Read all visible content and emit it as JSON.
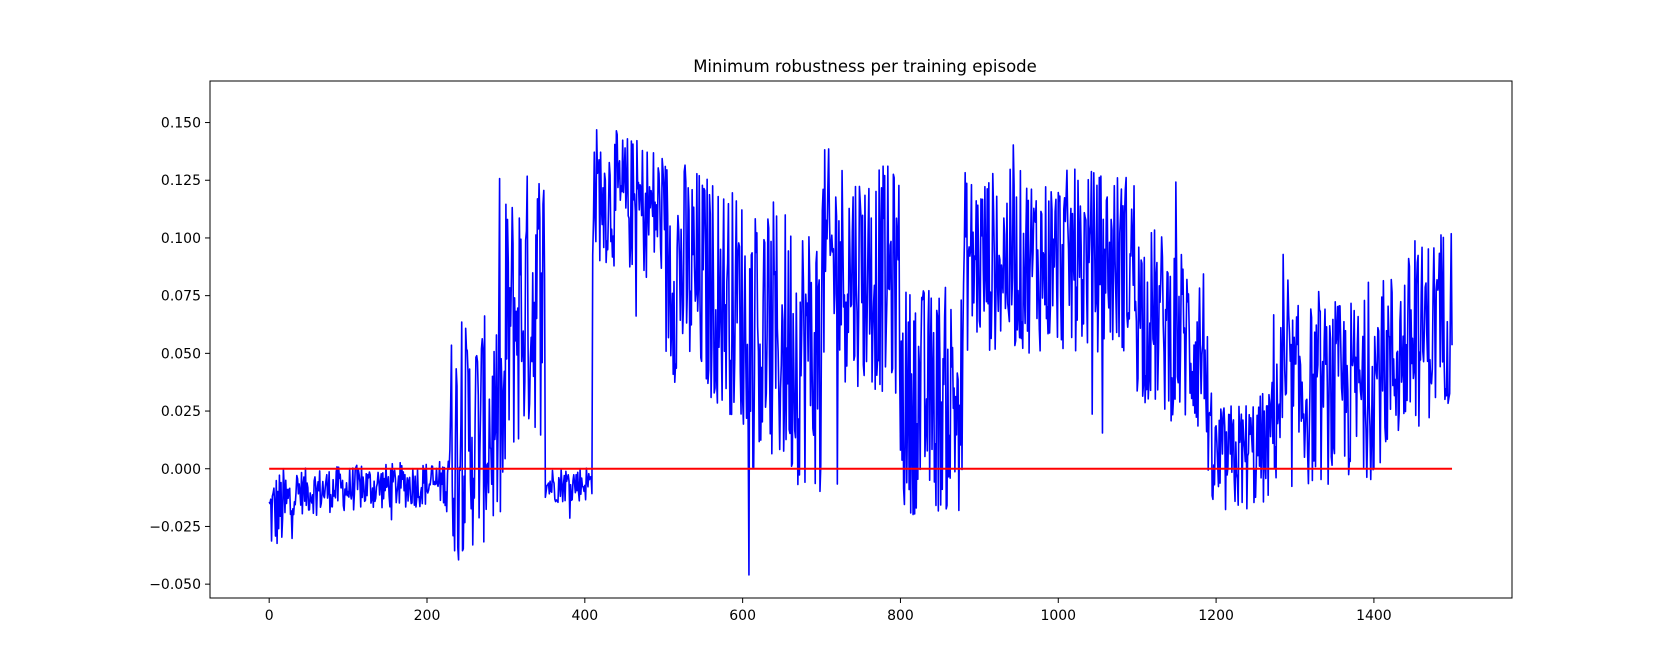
{
  "chart_data": {
    "type": "line",
    "title": "Minimum robustness per training episode",
    "xlabel": "",
    "ylabel": "",
    "xlim": [
      -75,
      1575
    ],
    "ylim": [
      -0.056,
      0.168
    ],
    "x_ticks": [
      0,
      200,
      400,
      600,
      800,
      1000,
      1200,
      1400
    ],
    "x_tick_labels": [
      "0",
      "200",
      "400",
      "600",
      "800",
      "1000",
      "1200",
      "1400"
    ],
    "y_ticks": [
      -0.05,
      -0.025,
      0.0,
      0.025,
      0.05,
      0.075,
      0.1,
      0.125,
      0.15
    ],
    "y_tick_labels": [
      "−0.050",
      "−0.025",
      "0.000",
      "0.025",
      "0.050",
      "0.075",
      "0.100",
      "0.125",
      "0.150"
    ],
    "grid": false,
    "episodes": 1500,
    "series": [
      {
        "color": "#0000ff",
        "style": "noisy",
        "segments": [
          {
            "x": [
              0,
              30
            ],
            "mean_start": -0.02,
            "mean_end": -0.015,
            "spread": 0.018
          },
          {
            "x": [
              30,
              225
            ],
            "mean_start": -0.01,
            "mean_end": -0.006,
            "spread": 0.01
          },
          {
            "x": [
              225,
              300
            ],
            "mean_start": 0.01,
            "mean_end": 0.02,
            "spread": 0.05
          },
          {
            "x": [
              300,
              350
            ],
            "mean_start": 0.06,
            "mean_end": 0.08,
            "spread": 0.06
          },
          {
            "x": [
              350,
              410
            ],
            "mean_start": -0.007,
            "mean_end": -0.006,
            "spread": 0.008
          },
          {
            "x": [
              410,
              500
            ],
            "mean_start": 0.12,
            "mean_end": 0.11,
            "spread": 0.03
          },
          {
            "x": [
              500,
              600
            ],
            "mean_start": 0.09,
            "mean_end": 0.07,
            "spread": 0.05
          },
          {
            "x": [
              600,
              700
            ],
            "mean_start": 0.06,
            "mean_end": 0.05,
            "spread": 0.06
          },
          {
            "x": [
              700,
              800
            ],
            "mean_start": 0.09,
            "mean_end": 0.08,
            "spread": 0.05
          },
          {
            "x": [
              800,
              880
            ],
            "mean_start": 0.03,
            "mean_end": 0.03,
            "spread": 0.05
          },
          {
            "x": [
              880,
              1100
            ],
            "mean_start": 0.09,
            "mean_end": 0.09,
            "spread": 0.04
          },
          {
            "x": [
              1100,
              1190
            ],
            "mean_start": 0.07,
            "mean_end": 0.05,
            "spread": 0.04
          },
          {
            "x": [
              1190,
              1270
            ],
            "mean_start": 0.0,
            "mean_end": 0.01,
            "spread": 0.025
          },
          {
            "x": [
              1270,
              1400
            ],
            "mean_start": 0.03,
            "mean_end": 0.035,
            "spread": 0.04
          },
          {
            "x": [
              1400,
              1500
            ],
            "mean_start": 0.04,
            "mean_end": 0.07,
            "spread": 0.04
          }
        ]
      },
      {
        "color": "#ff0000",
        "style": "constant",
        "x": [
          0,
          1499
        ],
        "y": [
          0.0,
          0.0
        ]
      }
    ]
  }
}
